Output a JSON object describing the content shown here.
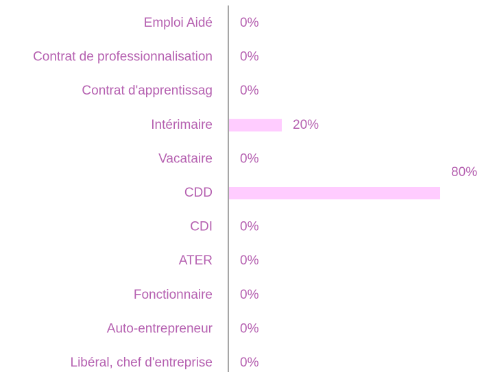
{
  "chart_data": {
    "type": "bar",
    "orientation": "horizontal",
    "categories": [
      "Emploi Aidé",
      "Contrat de professionnalisation",
      "Contrat d'apprentissag",
      "Intérimaire",
      "Vacataire",
      "CDD",
      "CDI",
      "ATER",
      "Fonctionnaire",
      "Auto-entrepreneur",
      "Libéral, chef d'entreprise"
    ],
    "values": [
      0,
      0,
      0,
      20,
      0,
      80,
      0,
      0,
      0,
      0,
      0
    ],
    "value_labels": [
      "0%",
      "0%",
      "0%",
      "20%",
      "0%",
      "80%",
      "0%",
      "0%",
      "0%",
      "0%",
      "0%"
    ],
    "color": "#ffccff",
    "label_color": "#b560b0"
  }
}
